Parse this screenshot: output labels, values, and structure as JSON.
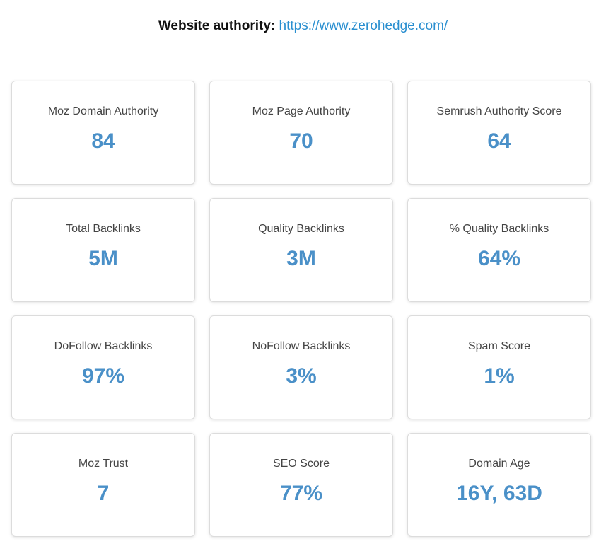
{
  "header": {
    "label": "Website authority:",
    "url": "https://www.zerohedge.com/"
  },
  "cards": [
    {
      "title": "Moz Domain Authority",
      "value": "84"
    },
    {
      "title": "Moz Page Authority",
      "value": "70"
    },
    {
      "title": "Semrush Authority Score",
      "value": "64"
    },
    {
      "title": "Total Backlinks",
      "value": "5M"
    },
    {
      "title": "Quality Backlinks",
      "value": "3M"
    },
    {
      "title": "% Quality Backlinks",
      "value": "64%"
    },
    {
      "title": "DoFollow Backlinks",
      "value": "97%"
    },
    {
      "title": "NoFollow Backlinks",
      "value": "3%"
    },
    {
      "title": "Spam Score",
      "value": "1%"
    },
    {
      "title": "Moz Trust",
      "value": "7"
    },
    {
      "title": "SEO Score",
      "value": "77%"
    },
    {
      "title": "Domain Age",
      "value": "16Y, 63D"
    }
  ],
  "colors": {
    "value": "#4a90c8",
    "link": "#2a8fd0"
  }
}
